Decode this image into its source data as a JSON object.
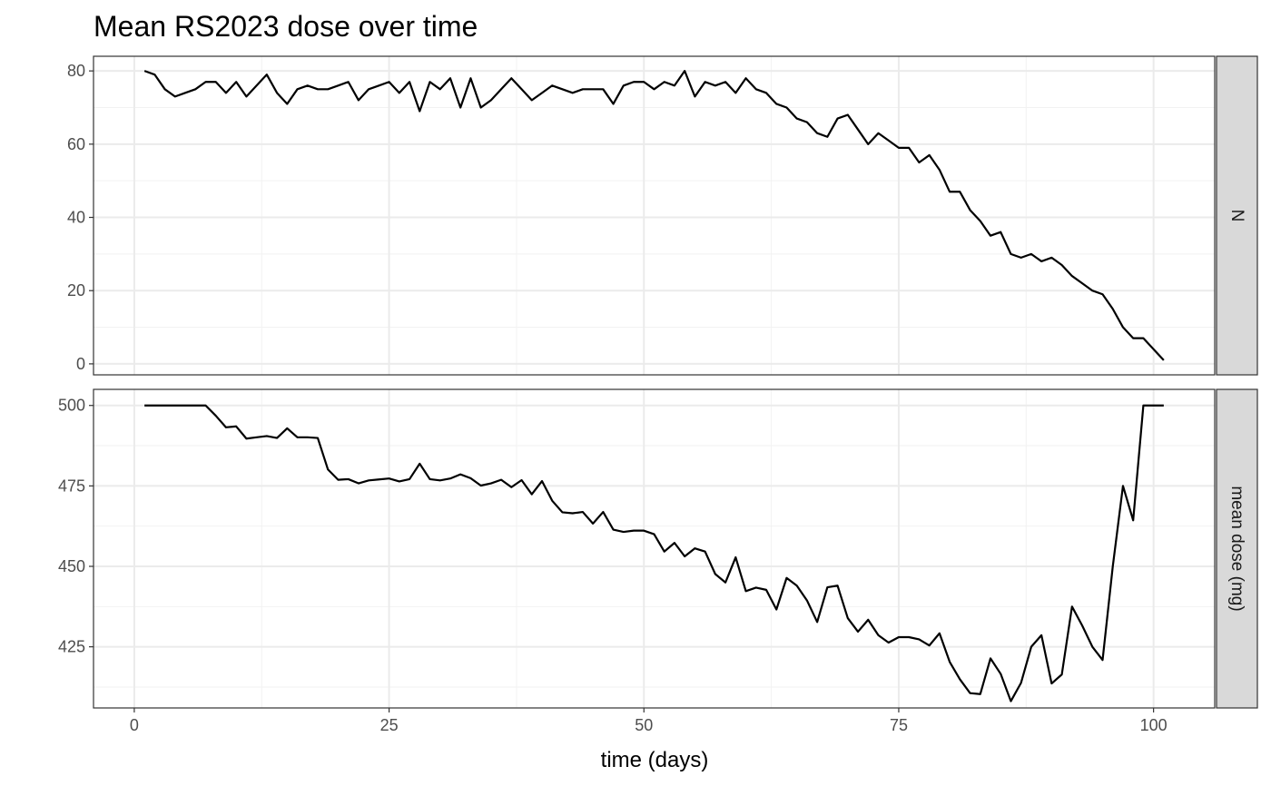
{
  "chart_data": {
    "type": "line",
    "title": "Mean RS2023 dose over time",
    "xlabel": "time (days)",
    "ylabel": "",
    "x_ticks": [
      0,
      25,
      50,
      75,
      100
    ],
    "xlim": [
      -4,
      106
    ],
    "grid": true,
    "line_color": "#000000",
    "x": [
      1,
      2,
      3,
      4,
      5,
      6,
      7,
      8,
      9,
      10,
      11,
      12,
      13,
      14,
      15,
      16,
      17,
      18,
      19,
      20,
      21,
      22,
      23,
      24,
      25,
      26,
      27,
      28,
      29,
      30,
      31,
      32,
      33,
      34,
      35,
      36,
      37,
      38,
      39,
      40,
      41,
      42,
      43,
      44,
      45,
      46,
      47,
      48,
      49,
      50,
      51,
      52,
      53,
      54,
      55,
      56,
      57,
      58,
      59,
      60,
      61,
      62,
      63,
      64,
      65,
      66,
      67,
      68,
      69,
      70,
      71,
      72,
      73,
      74,
      75,
      76,
      77,
      78,
      79,
      80,
      81,
      82,
      83,
      84,
      85,
      86,
      87,
      88,
      89,
      90,
      91,
      92,
      93,
      94,
      95,
      96,
      97,
      98,
      99,
      100,
      101
    ],
    "panels": [
      {
        "strip": "N",
        "ylim": [
          -3,
          84
        ],
        "y_ticks": [
          0,
          20,
          40,
          60,
          80
        ],
        "values": [
          80,
          79,
          75,
          73,
          74,
          75,
          77,
          77,
          74,
          77,
          73,
          76,
          79,
          74,
          71,
          75,
          76,
          75,
          75,
          76,
          77,
          72,
          75,
          76,
          77,
          74,
          77,
          69,
          77,
          75,
          78,
          70,
          78,
          70,
          72,
          75,
          78,
          75,
          72,
          74,
          76,
          75,
          74,
          75,
          75,
          75,
          71,
          76,
          77,
          77,
          75,
          77,
          76,
          80,
          73,
          77,
          76,
          77,
          74,
          78,
          75,
          74,
          71,
          70,
          67,
          66,
          63,
          62,
          67,
          68,
          64,
          60,
          63,
          61,
          59,
          59,
          55,
          57,
          53,
          47,
          47,
          42,
          39,
          35,
          36,
          30,
          29,
          30,
          28,
          29,
          27,
          24,
          22,
          20,
          19,
          15,
          10,
          7,
          7,
          4,
          1
        ]
      },
      {
        "strip": "mean dose (mg)",
        "ylim": [
          406,
          505
        ],
        "y_ticks": [
          425,
          450,
          475,
          500
        ],
        "values": [
          500,
          500,
          500,
          500,
          500,
          500,
          500,
          496.8,
          493.2,
          493.5,
          489.7,
          490.1,
          490.5,
          489.9,
          492.9,
          490.1,
          490.1,
          489.9,
          480.1,
          476.9,
          477.1,
          475.8,
          476.7,
          477,
          477.3,
          476.4,
          477.1,
          481.9,
          477.1,
          476.7,
          477.3,
          478.6,
          477.4,
          475.1,
          475.8,
          476.9,
          474.6,
          476.8,
          472.4,
          476.5,
          470.4,
          466.8,
          466.5,
          466.9,
          463.3,
          466.9,
          461.4,
          460.7,
          461.1,
          461.1,
          460.0,
          454.6,
          457.3,
          453.1,
          455.6,
          454.6,
          447.6,
          445,
          452.8,
          442.3,
          443.4,
          442.7,
          436.6,
          446.4,
          444,
          439.4,
          432.7,
          443.5,
          444,
          433.9,
          429.7,
          433.4,
          428.6,
          426.3,
          428.0,
          428,
          427.3,
          425.4,
          429.2,
          420.3,
          414.9,
          410.6,
          410.3,
          421.4,
          416.6,
          408.1,
          413.8,
          425,
          428.6,
          413.6,
          416.4,
          437.5,
          431.6,
          425,
          420.9,
          450,
          475,
          464.3,
          500,
          500,
          500
        ]
      }
    ]
  }
}
